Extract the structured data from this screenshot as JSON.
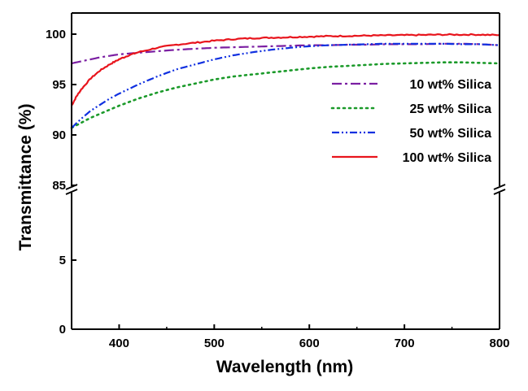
{
  "chart_data": {
    "type": "line",
    "title": "",
    "xlabel": "Wavelength (nm)",
    "ylabel": "Transmittance (%)",
    "xlim": [
      350,
      800
    ],
    "x_ticks": [
      400,
      500,
      600,
      700,
      800
    ],
    "y_axis": {
      "broken": true,
      "break_between": [
        5,
        85
      ],
      "lower_range": [
        0,
        5
      ],
      "upper_range": [
        85,
        101
      ],
      "ticks": [
        0,
        5,
        85,
        90,
        95,
        100
      ],
      "tick_labels": [
        "0",
        "5",
        "85",
        "90",
        "95",
        "100"
      ]
    },
    "grid": false,
    "legend_position": "right",
    "series": [
      {
        "name": "10 wt% Silica",
        "color": "#7B1FA2",
        "line_style": "dash-dot",
        "x": [
          350,
          360,
          370,
          380,
          390,
          400,
          420,
          440,
          460,
          480,
          500,
          520,
          540,
          560,
          580,
          600,
          620,
          640,
          660,
          680,
          700,
          720,
          740,
          760,
          780,
          800
        ],
        "y": [
          97.1,
          97.3,
          97.5,
          97.7,
          97.85,
          98.0,
          98.15,
          98.3,
          98.45,
          98.55,
          98.65,
          98.7,
          98.75,
          98.8,
          98.85,
          98.9,
          98.9,
          98.95,
          98.95,
          99.0,
          99.0,
          99.0,
          99.05,
          99.05,
          99.0,
          98.9
        ]
      },
      {
        "name": "25 wt% Silica",
        "color": "#1B9A2A",
        "line_style": "dotted",
        "x": [
          350,
          360,
          370,
          380,
          390,
          400,
          420,
          440,
          460,
          480,
          500,
          520,
          540,
          560,
          580,
          600,
          620,
          640,
          660,
          680,
          700,
          720,
          740,
          760,
          780,
          800
        ],
        "y": [
          90.7,
          91.2,
          91.7,
          92.1,
          92.5,
          92.9,
          93.6,
          94.2,
          94.7,
          95.1,
          95.5,
          95.8,
          96.0,
          96.2,
          96.4,
          96.6,
          96.75,
          96.85,
          96.95,
          97.05,
          97.1,
          97.15,
          97.2,
          97.2,
          97.15,
          97.1
        ]
      },
      {
        "name": "50 wt% Silica",
        "color": "#1030E0",
        "line_style": "dash-dot-dot",
        "x": [
          350,
          360,
          370,
          380,
          390,
          400,
          420,
          440,
          460,
          480,
          500,
          520,
          540,
          560,
          580,
          600,
          620,
          640,
          660,
          680,
          700,
          720,
          740,
          760,
          780,
          800
        ],
        "y": [
          90.7,
          91.6,
          92.4,
          93.0,
          93.6,
          94.1,
          95.0,
          95.8,
          96.5,
          97.0,
          97.5,
          97.9,
          98.2,
          98.45,
          98.65,
          98.8,
          98.9,
          98.95,
          99.0,
          99.05,
          99.05,
          99.05,
          99.05,
          99.0,
          99.0,
          98.9
        ]
      },
      {
        "name": "100 wt% Silica",
        "color": "#E8141C",
        "line_style": "solid",
        "x": [
          350,
          355,
          360,
          370,
          380,
          390,
          400,
          410,
          420,
          440,
          460,
          480,
          500,
          520,
          540,
          560,
          580,
          600,
          620,
          640,
          660,
          680,
          700,
          720,
          740,
          760,
          780,
          800
        ],
        "y": [
          92.9,
          93.8,
          94.5,
          95.6,
          96.4,
          97.0,
          97.5,
          97.9,
          98.2,
          98.65,
          98.95,
          99.15,
          99.35,
          99.5,
          99.6,
          99.65,
          99.7,
          99.75,
          99.8,
          99.82,
          99.85,
          99.88,
          99.9,
          99.92,
          99.95,
          99.95,
          99.95,
          99.9
        ]
      }
    ]
  }
}
